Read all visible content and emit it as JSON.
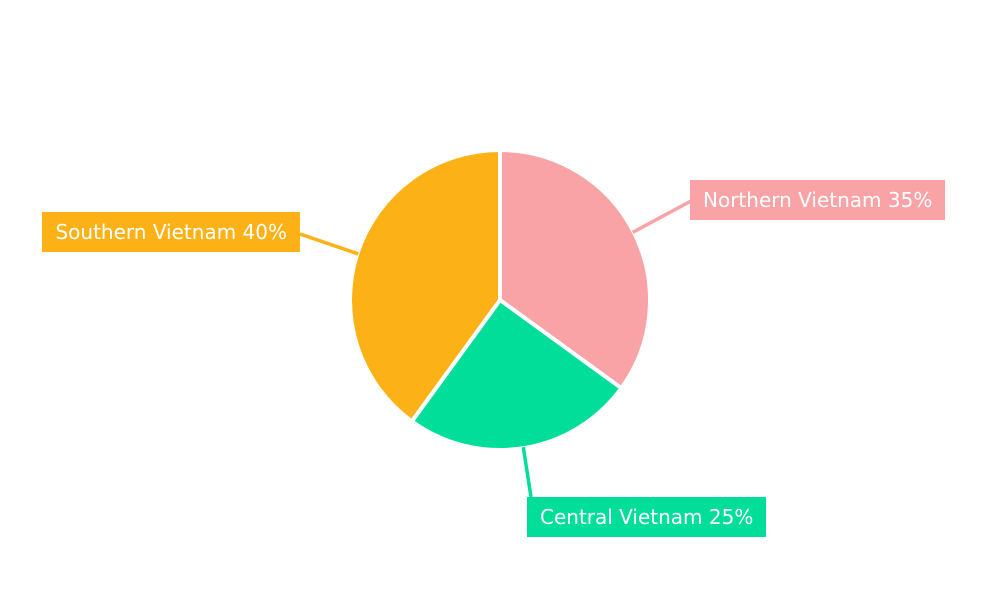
{
  "page": {
    "background_color": "#ffffff"
  },
  "chart_data": {
    "type": "pie",
    "title": "",
    "unit": "%",
    "start_angle": "top",
    "direction": "clockwise",
    "slice_border_color": "#ffffff",
    "label_text_color": "#ffffff",
    "legend_position": "none",
    "categories": [
      "Northern Vietnam",
      "Central Vietnam",
      "Southern Vietnam"
    ],
    "values": [
      35,
      25,
      40
    ],
    "series": [
      {
        "name": "Northern Vietnam",
        "value": 35,
        "percent_label": "Northern Vietnam 35%",
        "color": "#F9A3A6"
      },
      {
        "name": "Central Vietnam",
        "value": 25,
        "percent_label": "Central Vietnam 25%",
        "color": "#00DE9A"
      },
      {
        "name": "Southern Vietnam",
        "value": 40,
        "percent_label": "Southern Vietnam 40%",
        "color": "#FCB116"
      }
    ]
  }
}
